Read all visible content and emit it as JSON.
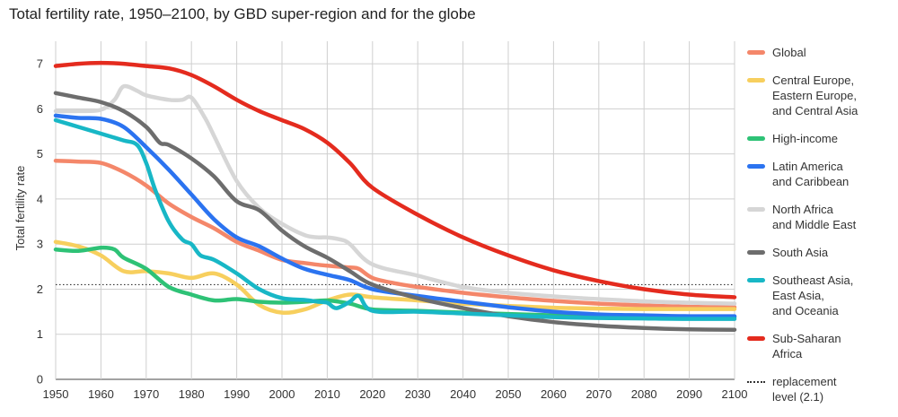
{
  "title": "Total fertility rate, 1950–2100, by GBD super-region and for the globe",
  "chart_data": {
    "type": "line",
    "ylabel": "Total fertility rate",
    "xlabel": "",
    "xlim": [
      1950,
      2100
    ],
    "ylim": [
      0,
      7.5
    ],
    "xticks": [
      1950,
      1960,
      1970,
      1980,
      1990,
      2000,
      2010,
      2020,
      2030,
      2040,
      2050,
      2060,
      2070,
      2080,
      2090,
      2100
    ],
    "yticks": [
      0,
      1,
      2,
      3,
      4,
      5,
      6,
      7
    ],
    "grid": true,
    "legend_position": "right",
    "series": [
      {
        "name": "Global",
        "color": "#f4876a",
        "x": [
          1950,
          1955,
          1960,
          1965,
          1970,
          1975,
          1980,
          1985,
          1990,
          1995,
          2000,
          2005,
          2010,
          2015,
          2017,
          2020,
          2025,
          2030,
          2040,
          2050,
          2060,
          2070,
          2080,
          2090,
          2100
        ],
        "y": [
          4.85,
          4.83,
          4.8,
          4.6,
          4.3,
          3.9,
          3.6,
          3.35,
          3.05,
          2.85,
          2.65,
          2.58,
          2.52,
          2.48,
          2.45,
          2.25,
          2.13,
          2.05,
          1.92,
          1.82,
          1.74,
          1.68,
          1.64,
          1.61,
          1.6
        ]
      },
      {
        "name": "Central Europe,\nEastern Europe,\nand Central Asia",
        "color": "#f7cf5e",
        "x": [
          1950,
          1955,
          1960,
          1965,
          1970,
          1975,
          1980,
          1985,
          1990,
          1995,
          2000,
          2005,
          2010,
          2015,
          2020,
          2030,
          2040,
          2050,
          2060,
          2070,
          2080,
          2090,
          2100
        ],
        "y": [
          3.05,
          2.95,
          2.75,
          2.4,
          2.4,
          2.35,
          2.25,
          2.35,
          2.1,
          1.65,
          1.48,
          1.55,
          1.75,
          1.88,
          1.82,
          1.75,
          1.68,
          1.63,
          1.59,
          1.57,
          1.56,
          1.56,
          1.56
        ]
      },
      {
        "name": "High-income",
        "color": "#2ec276",
        "x": [
          1950,
          1955,
          1960,
          1963,
          1965,
          1970,
          1975,
          1980,
          1985,
          1990,
          1995,
          2000,
          2005,
          2010,
          2015,
          2020,
          2030,
          2040,
          2050,
          2060,
          2070,
          2080,
          2090,
          2100
        ],
        "y": [
          2.88,
          2.85,
          2.92,
          2.88,
          2.7,
          2.45,
          2.05,
          1.88,
          1.75,
          1.78,
          1.72,
          1.7,
          1.72,
          1.75,
          1.68,
          1.55,
          1.52,
          1.48,
          1.45,
          1.42,
          1.4,
          1.39,
          1.38,
          1.38
        ]
      },
      {
        "name": "Latin America\nand Caribbean",
        "color": "#2b73f0",
        "x": [
          1950,
          1955,
          1960,
          1965,
          1970,
          1975,
          1980,
          1985,
          1990,
          1995,
          2000,
          2005,
          2010,
          2015,
          2020,
          2030,
          2040,
          2050,
          2060,
          2070,
          2080,
          2090,
          2100
        ],
        "y": [
          5.85,
          5.8,
          5.78,
          5.6,
          5.15,
          4.65,
          4.1,
          3.55,
          3.15,
          2.95,
          2.68,
          2.45,
          2.32,
          2.2,
          2.0,
          1.85,
          1.72,
          1.6,
          1.5,
          1.44,
          1.42,
          1.4,
          1.4
        ]
      },
      {
        "name": "North Africa\nand Middle East",
        "color": "#d6d6d6",
        "x": [
          1950,
          1955,
          1960,
          1963,
          1965,
          1968,
          1970,
          1975,
          1978,
          1980,
          1983,
          1985,
          1990,
          1995,
          2000,
          2005,
          2008,
          2010,
          2013,
          2015,
          2020,
          2030,
          2040,
          2050,
          2060,
          2070,
          2080,
          2090,
          2100
        ],
        "y": [
          5.95,
          5.95,
          5.98,
          6.2,
          6.5,
          6.4,
          6.3,
          6.2,
          6.2,
          6.25,
          5.8,
          5.4,
          4.4,
          3.8,
          3.45,
          3.2,
          3.15,
          3.15,
          3.1,
          3.0,
          2.55,
          2.3,
          2.05,
          1.92,
          1.84,
          1.78,
          1.73,
          1.7,
          1.68
        ]
      },
      {
        "name": "South Asia",
        "color": "#6d6d6d",
        "x": [
          1950,
          1955,
          1960,
          1965,
          1970,
          1973,
          1975,
          1980,
          1985,
          1990,
          1995,
          2000,
          2005,
          2010,
          2015,
          2020,
          2030,
          2040,
          2050,
          2060,
          2070,
          2080,
          2090,
          2100
        ],
        "y": [
          6.35,
          6.25,
          6.15,
          5.95,
          5.6,
          5.25,
          5.2,
          4.9,
          4.5,
          3.95,
          3.75,
          3.3,
          2.95,
          2.7,
          2.4,
          2.1,
          1.8,
          1.58,
          1.4,
          1.27,
          1.19,
          1.14,
          1.11,
          1.1
        ]
      },
      {
        "name": "Southeast Asia,\nEast Asia,\nand Oceania",
        "color": "#18b7c6",
        "x": [
          1950,
          1955,
          1960,
          1965,
          1968,
          1970,
          1972,
          1975,
          1978,
          1980,
          1982,
          1985,
          1990,
          1995,
          2000,
          2005,
          2008,
          2010,
          2012,
          2015,
          2017,
          2020,
          2030,
          2040,
          2050,
          2060,
          2070,
          2080,
          2090,
          2100
        ],
        "y": [
          5.75,
          5.6,
          5.45,
          5.3,
          5.2,
          4.8,
          4.2,
          3.5,
          3.1,
          3.0,
          2.75,
          2.65,
          2.35,
          2.0,
          1.8,
          1.76,
          1.72,
          1.7,
          1.58,
          1.72,
          1.85,
          1.52,
          1.5,
          1.46,
          1.42,
          1.38,
          1.36,
          1.35,
          1.34,
          1.34
        ]
      },
      {
        "name": "Sub-Saharan\nAfrica",
        "color": "#e42b1e",
        "x": [
          1950,
          1955,
          1960,
          1965,
          1970,
          1975,
          1980,
          1985,
          1990,
          1995,
          2000,
          2005,
          2010,
          2015,
          2020,
          2030,
          2040,
          2050,
          2060,
          2070,
          2080,
          2090,
          2100
        ],
        "y": [
          6.95,
          7.0,
          7.02,
          7.0,
          6.95,
          6.9,
          6.75,
          6.5,
          6.2,
          5.95,
          5.75,
          5.55,
          5.25,
          4.8,
          4.25,
          3.65,
          3.15,
          2.75,
          2.42,
          2.18,
          2.0,
          1.88,
          1.82
        ]
      }
    ],
    "reference_line": {
      "label": "replacement\nlevel (2.1)",
      "y": 2.1,
      "color": "#333333"
    }
  }
}
